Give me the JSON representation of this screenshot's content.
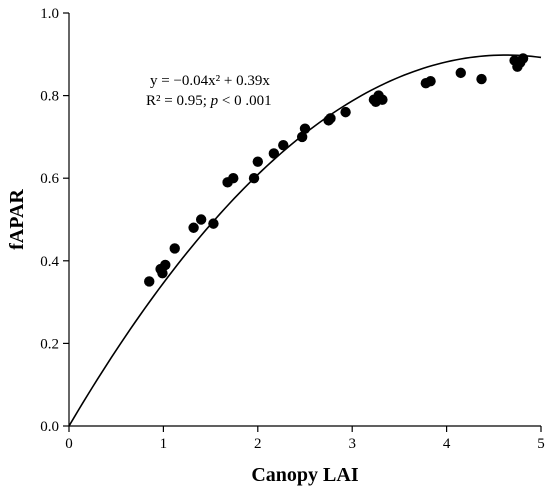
{
  "chart_data": {
    "type": "scatter",
    "xlabel": "Canopy LAI",
    "ylabel": "fAPAR",
    "xlim": [
      0,
      5
    ],
    "ylim": [
      0,
      1.0
    ],
    "x_ticks": [
      "0",
      "1",
      "2",
      "3",
      "4",
      "5"
    ],
    "y_ticks": [
      "0.0",
      "0.2",
      "0.4",
      "0.6",
      "0.8",
      "1.0"
    ],
    "grid": false,
    "annotation": {
      "equation": "y = −0.04x² + 0.39x",
      "r2_prefix": "R² = 0.95; ",
      "p_symbol": "p",
      "p_suffix": " < 0 .001"
    },
    "fit_curve": {
      "a": -0.04195,
      "b": 0.38822,
      "x_range": [
        0,
        5
      ]
    },
    "points": [
      {
        "x": 0.85,
        "y": 0.35
      },
      {
        "x": 0.97,
        "y": 0.38
      },
      {
        "x": 0.99,
        "y": 0.37
      },
      {
        "x": 1.02,
        "y": 0.39
      },
      {
        "x": 1.12,
        "y": 0.43
      },
      {
        "x": 1.32,
        "y": 0.48
      },
      {
        "x": 1.4,
        "y": 0.5
      },
      {
        "x": 1.53,
        "y": 0.49
      },
      {
        "x": 1.68,
        "y": 0.59
      },
      {
        "x": 1.74,
        "y": 0.6
      },
      {
        "x": 1.96,
        "y": 0.6
      },
      {
        "x": 2.0,
        "y": 0.64
      },
      {
        "x": 2.17,
        "y": 0.66
      },
      {
        "x": 2.27,
        "y": 0.68
      },
      {
        "x": 2.47,
        "y": 0.7
      },
      {
        "x": 2.5,
        "y": 0.72
      },
      {
        "x": 2.75,
        "y": 0.74
      },
      {
        "x": 2.77,
        "y": 0.745
      },
      {
        "x": 2.93,
        "y": 0.76
      },
      {
        "x": 3.23,
        "y": 0.79
      },
      {
        "x": 3.25,
        "y": 0.785
      },
      {
        "x": 3.28,
        "y": 0.8
      },
      {
        "x": 3.32,
        "y": 0.79
      },
      {
        "x": 3.78,
        "y": 0.83
      },
      {
        "x": 3.83,
        "y": 0.835
      },
      {
        "x": 4.15,
        "y": 0.855
      },
      {
        "x": 4.37,
        "y": 0.84
      },
      {
        "x": 4.72,
        "y": 0.885
      },
      {
        "x": 4.75,
        "y": 0.87
      },
      {
        "x": 4.78,
        "y": 0.88
      },
      {
        "x": 4.81,
        "y": 0.89
      }
    ]
  }
}
